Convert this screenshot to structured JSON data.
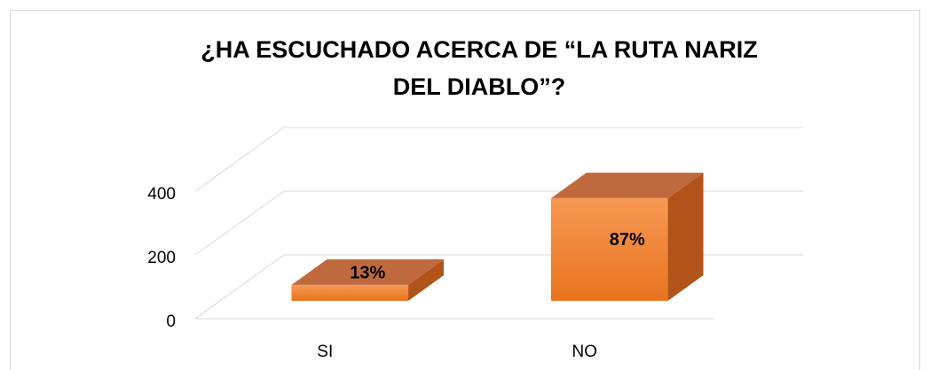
{
  "chart_data": {
    "type": "bar3d",
    "title": "¿HA ESCUCHADO ACERCA DE “LA RUTA NARIZ DEL DIABLO”?",
    "categories": [
      "SI",
      "NO"
    ],
    "values": [
      50,
      322
    ],
    "data_labels": [
      "13%",
      "87%"
    ],
    "color": "#f07f2a",
    "ylim": [
      0,
      400
    ],
    "yticks": [
      0,
      200,
      400
    ],
    "grid": true
  }
}
